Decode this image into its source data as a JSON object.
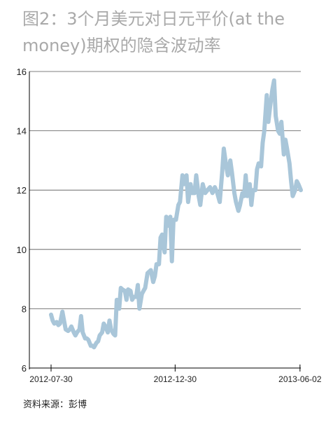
{
  "chart_data": {
    "type": "line",
    "title": "图2：3个月美元对日元平价(at the money)期权的隐含波动率",
    "xlabel": "",
    "ylabel": "",
    "ylim": [
      6,
      16
    ],
    "yticks": [
      6,
      8,
      10,
      12,
      14,
      16
    ],
    "xticks": [
      "2012-07-30",
      "2012-12-30",
      "2013-06-02"
    ],
    "grid": true,
    "line_color": "#a9c6d9",
    "series": [
      {
        "name": "",
        "points": [
          [
            "2012-07-30",
            7.8
          ],
          [
            "2012-08-01",
            7.6
          ],
          [
            "2012-08-03",
            7.5
          ],
          [
            "2012-08-06",
            7.55
          ],
          [
            "2012-08-08",
            7.45
          ],
          [
            "2012-08-10",
            7.5
          ],
          [
            "2012-08-13",
            7.9
          ],
          [
            "2012-08-15",
            7.6
          ],
          [
            "2012-08-17",
            7.3
          ],
          [
            "2012-08-20",
            7.25
          ],
          [
            "2012-08-22",
            7.3
          ],
          [
            "2012-08-24",
            7.4
          ],
          [
            "2012-08-27",
            7.2
          ],
          [
            "2012-08-29",
            7.1
          ],
          [
            "2012-08-31",
            7.2
          ],
          [
            "2012-09-03",
            7.3
          ],
          [
            "2012-09-05",
            7.75
          ],
          [
            "2012-09-07",
            7.2
          ],
          [
            "2012-09-10",
            7.0
          ],
          [
            "2012-09-12",
            7.0
          ],
          [
            "2012-09-14",
            6.95
          ],
          [
            "2012-09-17",
            6.75
          ],
          [
            "2012-09-19",
            6.75
          ],
          [
            "2012-09-21",
            6.7
          ],
          [
            "2012-09-24",
            6.85
          ],
          [
            "2012-09-26",
            6.9
          ],
          [
            "2012-09-28",
            7.1
          ],
          [
            "2012-10-01",
            7.2
          ],
          [
            "2012-10-03",
            7.5
          ],
          [
            "2012-10-05",
            7.4
          ],
          [
            "2012-10-08",
            7.2
          ],
          [
            "2012-10-10",
            7.6
          ],
          [
            "2012-10-12",
            7.3
          ],
          [
            "2012-10-15",
            7.15
          ],
          [
            "2012-10-17",
            7.1
          ],
          [
            "2012-10-19",
            8.3
          ],
          [
            "2012-10-22",
            8.0
          ],
          [
            "2012-10-24",
            8.7
          ],
          [
            "2012-10-26",
            8.65
          ],
          [
            "2012-10-29",
            8.6
          ],
          [
            "2012-10-31",
            8.3
          ],
          [
            "2012-11-02",
            8.65
          ],
          [
            "2012-11-05",
            8.6
          ],
          [
            "2012-11-07",
            8.3
          ],
          [
            "2012-11-09",
            8.4
          ],
          [
            "2012-11-12",
            8.4
          ],
          [
            "2012-11-14",
            8.8
          ],
          [
            "2012-11-16",
            8.0
          ],
          [
            "2012-11-19",
            8.5
          ],
          [
            "2012-11-21",
            8.6
          ],
          [
            "2012-11-23",
            8.7
          ],
          [
            "2012-11-26",
            9.2
          ],
          [
            "2012-11-28",
            9.25
          ],
          [
            "2012-11-30",
            9.3
          ],
          [
            "2012-12-03",
            8.9
          ],
          [
            "2012-12-05",
            9.1
          ],
          [
            "2012-12-07",
            9.5
          ],
          [
            "2012-12-10",
            9.5
          ],
          [
            "2012-12-12",
            10.4
          ],
          [
            "2012-12-14",
            10.5
          ],
          [
            "2012-12-17",
            9.9
          ],
          [
            "2012-12-19",
            11.1
          ],
          [
            "2012-12-21",
            10.8
          ],
          [
            "2012-12-24",
            11.1
          ],
          [
            "2012-12-26",
            9.6
          ],
          [
            "2012-12-28",
            11.0
          ],
          [
            "2012-12-31",
            11.0
          ],
          [
            "2013-01-03",
            11.5
          ],
          [
            "2013-01-05",
            11.6
          ],
          [
            "2013-01-08",
            12.5
          ],
          [
            "2013-01-10",
            12.2
          ],
          [
            "2013-01-13",
            12.5
          ],
          [
            "2013-01-15",
            11.6
          ],
          [
            "2013-01-18",
            12.2
          ],
          [
            "2013-01-20",
            11.9
          ],
          [
            "2013-01-23",
            11.9
          ],
          [
            "2013-01-25",
            12.5
          ],
          [
            "2013-01-28",
            11.8
          ],
          [
            "2013-01-30",
            11.5
          ],
          [
            "2013-02-02",
            12.2
          ],
          [
            "2013-02-05",
            11.9
          ],
          [
            "2013-02-08",
            12.0
          ],
          [
            "2013-02-11",
            12.1
          ],
          [
            "2013-02-14",
            11.9
          ],
          [
            "2013-02-17",
            12.1
          ],
          [
            "2013-02-20",
            11.9
          ],
          [
            "2013-02-23",
            11.6
          ],
          [
            "2013-02-26",
            12.6
          ],
          [
            "2013-02-28",
            13.4
          ],
          [
            "2013-03-03",
            12.8
          ],
          [
            "2013-03-05",
            12.5
          ],
          [
            "2013-03-08",
            13.0
          ],
          [
            "2013-03-10",
            12.6
          ],
          [
            "2013-03-13",
            11.9
          ],
          [
            "2013-03-15",
            11.6
          ],
          [
            "2013-03-18",
            11.3
          ],
          [
            "2013-03-20",
            11.5
          ],
          [
            "2013-03-23",
            11.9
          ],
          [
            "2013-03-25",
            11.8
          ],
          [
            "2013-03-27",
            12.5
          ],
          [
            "2013-03-29",
            11.8
          ],
          [
            "2013-04-01",
            12.2
          ],
          [
            "2013-04-03",
            11.5
          ],
          [
            "2013-04-05",
            12.0
          ],
          [
            "2013-04-08",
            12.0
          ],
          [
            "2013-04-10",
            12.7
          ],
          [
            "2013-04-12",
            12.9
          ],
          [
            "2013-04-15",
            12.8
          ],
          [
            "2013-04-17",
            13.6
          ],
          [
            "2013-04-19",
            14.0
          ],
          [
            "2013-04-22",
            15.2
          ],
          [
            "2013-04-24",
            14.3
          ],
          [
            "2013-04-26",
            14.8
          ],
          [
            "2013-04-29",
            15.4
          ],
          [
            "2013-05-01",
            15.7
          ],
          [
            "2013-05-03",
            14.5
          ],
          [
            "2013-05-06",
            14.0
          ],
          [
            "2013-05-08",
            13.9
          ],
          [
            "2013-05-10",
            14.3
          ],
          [
            "2013-05-13",
            13.2
          ],
          [
            "2013-05-15",
            13.7
          ],
          [
            "2013-05-17",
            13.4
          ],
          [
            "2013-05-20",
            12.9
          ],
          [
            "2013-05-22",
            12.3
          ],
          [
            "2013-05-24",
            11.8
          ],
          [
            "2013-05-27",
            12.0
          ],
          [
            "2013-05-29",
            12.3
          ],
          [
            "2013-05-31",
            12.2
          ],
          [
            "2013-06-03",
            12.0
          ]
        ]
      }
    ]
  },
  "footer": {
    "source": "资料来源：彭博"
  }
}
